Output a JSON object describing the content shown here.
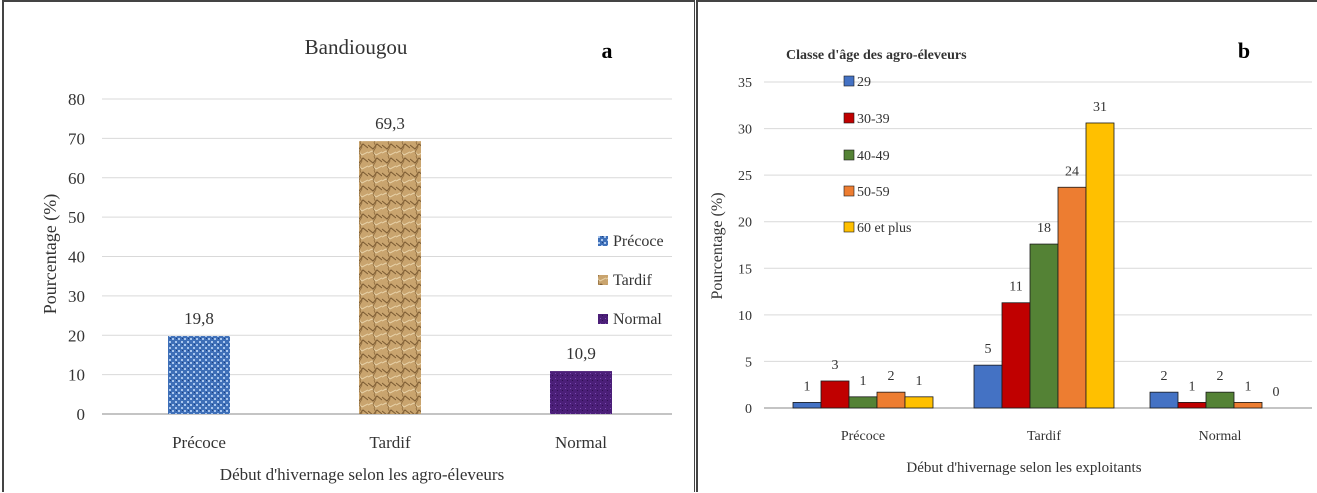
{
  "chart_data": [
    {
      "type": "bar",
      "title": "Bandiougou",
      "panel_label": "a",
      "xlabel": "Début d'hivernage selon les agro-éleveurs",
      "ylabel": "Pourcentage (%)",
      "categories": [
        "Précoce",
        "Tardif",
        "Normal"
      ],
      "values": [
        19.8,
        69.3,
        10.9
      ],
      "value_labels": [
        "19,8",
        "69,3",
        "10,9"
      ],
      "bar_colors": [
        "#3e6fb8",
        "#c9a46e",
        "#4b1f78"
      ],
      "legend": [
        "Précoce",
        "Tardif",
        "Normal"
      ],
      "legend_position": "right",
      "ylim": [
        0,
        80
      ],
      "yticks": [
        0,
        10,
        20,
        30,
        40,
        50,
        60,
        70,
        80
      ],
      "grid": true
    },
    {
      "type": "bar",
      "title": "",
      "panel_label": "b",
      "legend_title": "Classe d'âge des agro-éleveurs",
      "legend_position": "top-left",
      "xlabel": "Début d'hivernage selon les exploitants",
      "ylabel": "Pourcentage (%)",
      "categories": [
        "Précoce",
        "Tardif",
        "Normal"
      ],
      "series": [
        {
          "name": "29",
          "color": "#4472c4",
          "values": [
            0.6,
            4.6,
            1.7
          ],
          "labels": [
            "1",
            "5",
            "2"
          ]
        },
        {
          "name": "30-39",
          "color": "#c00000",
          "values": [
            2.9,
            11.3,
            0.6
          ],
          "labels": [
            "3",
            "11",
            "1"
          ]
        },
        {
          "name": "40-49",
          "color": "#548235",
          "values": [
            1.2,
            17.6,
            1.7
          ],
          "labels": [
            "1",
            "18",
            "2"
          ]
        },
        {
          "name": "50-59",
          "color": "#ed7d31",
          "values": [
            1.7,
            23.7,
            0.6
          ],
          "labels": [
            "2",
            "24",
            "1"
          ]
        },
        {
          "name": "60 et plus",
          "color": "#ffc000",
          "values": [
            1.2,
            30.6,
            0.0
          ],
          "labels": [
            "1",
            "31",
            "0"
          ]
        }
      ],
      "ylim": [
        0,
        35
      ],
      "yticks": [
        0,
        5,
        10,
        15,
        20,
        25,
        30,
        35
      ],
      "grid": true
    }
  ]
}
